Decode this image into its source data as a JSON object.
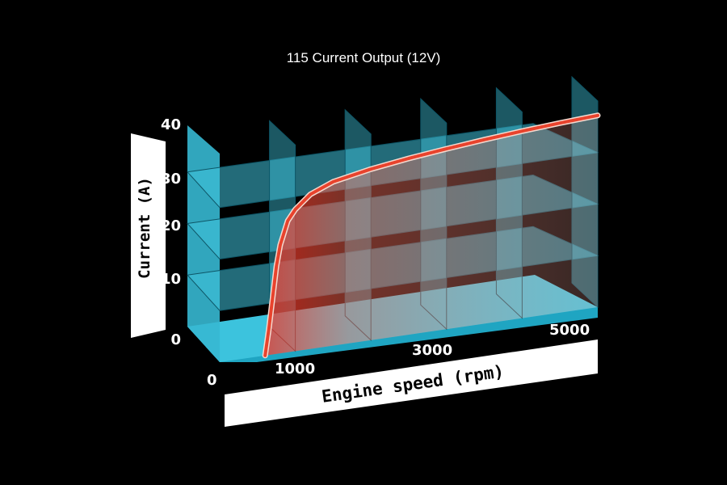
{
  "chart_data": {
    "type": "line",
    "title": "115 Current Output (12V)",
    "ylabel": "Current (A)",
    "xlabel": "Engine speed (rpm)",
    "y_ticks": [
      "0",
      "10",
      "20",
      "30",
      "40"
    ],
    "x_ticks": [
      "0",
      "1000",
      "3000",
      "5000"
    ],
    "xlim": [
      0,
      5000
    ],
    "ylim": [
      0,
      40
    ],
    "grid": true,
    "colors": {
      "surface": "#3fc3dc",
      "curve": "#e8432d",
      "heat": "#ff3a1f"
    },
    "series": [
      {
        "x": [
          600,
          650,
          700,
          750,
          800,
          900,
          1000,
          1200,
          1500,
          2000,
          2500,
          3000,
          3500,
          4000,
          4500,
          5000
        ],
        "y": [
          0,
          5,
          11,
          17,
          21,
          25.5,
          27.5,
          30,
          31.8,
          33.2,
          34.2,
          35,
          35.7,
          36.3,
          36.8,
          37.2
        ]
      }
    ]
  }
}
